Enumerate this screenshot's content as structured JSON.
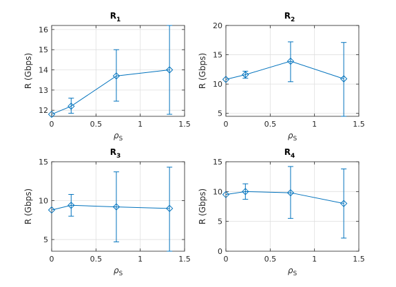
{
  "colors": {
    "series": "#0072bd",
    "axis": "#262626",
    "grid": "#dfdfdf",
    "background": "#ffffff"
  },
  "chart_data": [
    {
      "type": "line",
      "title": "R",
      "title_subscript": "1",
      "xlabel": "ρ",
      "xlabel_subscript": "S",
      "ylabel": "R (Gbps)",
      "xlim": [
        0,
        1.5
      ],
      "ylim": [
        11.7,
        16.2
      ],
      "xticks": [
        0,
        0.5,
        1,
        1.5
      ],
      "xtick_labels": [
        "0",
        "0.5",
        "1",
        "1.5"
      ],
      "yticks": [
        12,
        13,
        14,
        15,
        16
      ],
      "ytick_labels": [
        "12",
        "13",
        "14",
        "15",
        "16"
      ],
      "grid": true,
      "marker": "diamond",
      "error_bars": true,
      "x": [
        0,
        0.22,
        0.73,
        1.33
      ],
      "y": [
        11.8,
        12.2,
        13.7,
        14.0
      ],
      "err_low": [
        11.8,
        11.85,
        12.45,
        11.8
      ],
      "err_high": [
        11.8,
        12.6,
        15.0,
        16.2
      ]
    },
    {
      "type": "line",
      "title": "R",
      "title_subscript": "2",
      "xlabel": "ρ",
      "xlabel_subscript": "S",
      "ylabel": "R (Gbps)",
      "xlim": [
        0,
        1.5
      ],
      "ylim": [
        4.5,
        20
      ],
      "xticks": [
        0,
        0.5,
        1,
        1.5
      ],
      "xtick_labels": [
        "0",
        "0.5",
        "1",
        "1.5"
      ],
      "yticks": [
        5,
        10,
        15,
        20
      ],
      "ytick_labels": [
        "5",
        "10",
        "15",
        "20"
      ],
      "grid": true,
      "marker": "diamond",
      "error_bars": true,
      "x": [
        0,
        0.22,
        0.73,
        1.33
      ],
      "y": [
        10.8,
        11.6,
        13.9,
        10.9
      ],
      "err_low": [
        10.8,
        11.0,
        10.4,
        4.5
      ],
      "err_high": [
        10.8,
        12.2,
        17.2,
        17.1
      ]
    },
    {
      "type": "line",
      "title": "R",
      "title_subscript": "3",
      "xlabel": "ρ",
      "xlabel_subscript": "S",
      "ylabel": "R (Gbps)",
      "xlim": [
        0,
        1.5
      ],
      "ylim": [
        3.5,
        15
      ],
      "xticks": [
        0,
        0.5,
        1,
        1.5
      ],
      "xtick_labels": [
        "0",
        "0.5",
        "1",
        "1.5"
      ],
      "yticks": [
        5,
        10,
        15
      ],
      "ytick_labels": [
        "5",
        "10",
        "15"
      ],
      "grid": true,
      "marker": "diamond",
      "error_bars": true,
      "x": [
        0,
        0.22,
        0.73,
        1.33
      ],
      "y": [
        8.8,
        9.4,
        9.2,
        9.0
      ],
      "err_low": [
        8.8,
        8.0,
        4.7,
        3.5
      ],
      "err_high": [
        8.8,
        10.8,
        13.7,
        14.3
      ]
    },
    {
      "type": "line",
      "title": "R",
      "title_subscript": "4",
      "xlabel": "ρ",
      "xlabel_subscript": "S",
      "ylabel": "R (Gbps)",
      "xlim": [
        0,
        1.5
      ],
      "ylim": [
        0,
        15
      ],
      "xticks": [
        0,
        0.5,
        1,
        1.5
      ],
      "xtick_labels": [
        "0",
        "0.5",
        "1",
        "1.5"
      ],
      "yticks": [
        0,
        5,
        10,
        15
      ],
      "ytick_labels": [
        "0",
        "5",
        "10",
        "15"
      ],
      "grid": true,
      "marker": "diamond",
      "error_bars": true,
      "x": [
        0,
        0.22,
        0.73,
        1.33
      ],
      "y": [
        9.5,
        10.0,
        9.8,
        8.0
      ],
      "err_low": [
        9.5,
        8.7,
        5.5,
        2.2
      ],
      "err_high": [
        9.5,
        11.3,
        14.2,
        13.8
      ]
    }
  ]
}
